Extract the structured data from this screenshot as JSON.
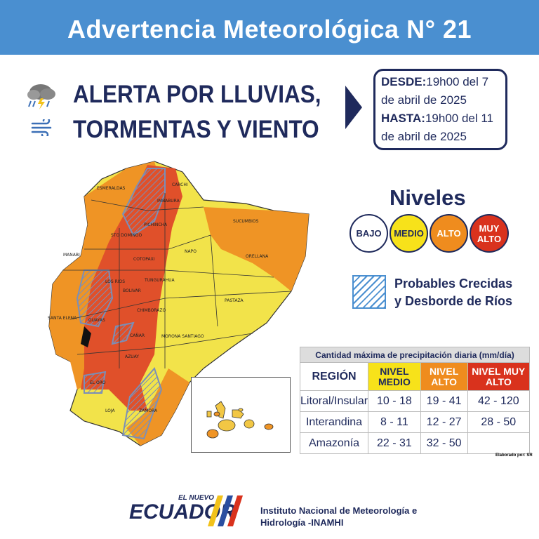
{
  "header": {
    "title": "Advertencia Meteorológica N° 21"
  },
  "alert": {
    "line1_prefix": "ALERTA POR ",
    "line1_bold": "LLUVIAS,",
    "line2": "TORMENTAS Y VIENTO",
    "icons": [
      "storm-cloud-icon",
      "wind-icon"
    ]
  },
  "dates": {
    "from_label": "DESDE:",
    "from_value": "19h00 del 7 de abril de 2025",
    "to_label": "HASTA:",
    "to_value": "19h00 del 11 de abril de 2025"
  },
  "levels": {
    "title": "Niveles",
    "items": [
      {
        "label": "BAJO",
        "color": "#ffffff"
      },
      {
        "label": "MEDIO",
        "color": "#f7e21a"
      },
      {
        "label": "ALTO",
        "color": "#ef8c1e"
      },
      {
        "label": "MUY ALTO",
        "color": "#d9321d"
      }
    ]
  },
  "legend": {
    "line1": "Probables Crecidas",
    "line2": "y Desborde de Ríos"
  },
  "map": {
    "provinces": [
      "ESMERALDAS",
      "CARCHI",
      "IMBABURA",
      "SUCUMBIOS",
      "PICHINCHA",
      "STO DOMINGO",
      "MANABI",
      "NAPO",
      "ORELLANA",
      "COTOPAXI",
      "LOS RIOS",
      "TUNGURAHUA",
      "BOLIVAR",
      "PASTAZA",
      "SANTA ELENA",
      "GUAYAS",
      "CHIMBORAZO",
      "CAÑAR",
      "MORONA SANTIAGO",
      "AZUAY",
      "EL ORO",
      "LOJA",
      "ZAMORA"
    ]
  },
  "table": {
    "caption": "Cantidad máxima de precipitación diaria (mm/día)",
    "headers": [
      "REGIÓN",
      "NIVEL MEDIO",
      "NIVEL ALTO",
      "NIVEL MUY ALTO"
    ],
    "rows": [
      {
        "region": "Litoral/Insular",
        "medio": "10 - 18",
        "alto": "19 - 41",
        "muy_alto": "42 - 120"
      },
      {
        "region": "Interandina",
        "medio": "8 - 11",
        "alto": "12 - 27",
        "muy_alto": "28 - 50"
      },
      {
        "region": "Amazonía",
        "medio": "22 - 31",
        "alto": "32 - 50",
        "muy_alto": ""
      }
    ],
    "credit": "Elaborado por: SR"
  },
  "footer": {
    "logo_small": "EL NUEVO",
    "logo_big": "ECUADOR",
    "institute_line1": "Instituto Nacional de Meteorología e",
    "institute_line2": "Hidrología -INAMHI"
  }
}
